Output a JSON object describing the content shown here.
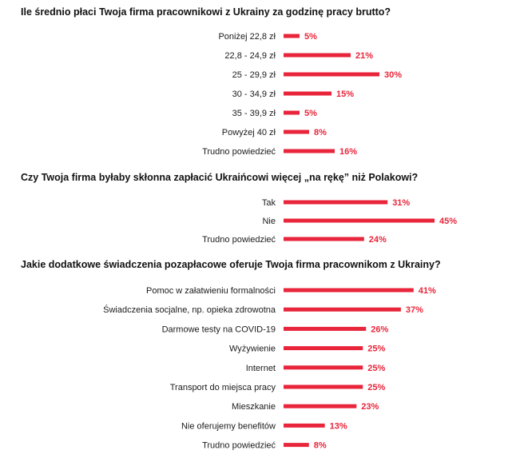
{
  "colors": {
    "bar": "#e8253a",
    "value_text": "#e8253a",
    "text": "#1a1a1a"
  },
  "chart_data": [
    {
      "type": "bar",
      "orientation": "horizontal",
      "title": "Ile średnio płaci Twoja firma pracownikowi z Ukrainy za godzinę pracy brutto?",
      "categories": [
        "Poniżej 22,8 zł",
        "22,8 - 24,9 zł",
        "25 - 29,9 zł",
        "30 - 34,9 zł",
        "35 - 39,9 zł",
        "Powyżej 40 zł",
        "Trudno powiedzieć"
      ],
      "values": [
        5,
        21,
        30,
        15,
        5,
        8,
        16
      ],
      "value_labels": [
        "5%",
        "21%",
        "30%",
        "15%",
        "5%",
        "8%",
        "16%"
      ]
    },
    {
      "type": "bar",
      "orientation": "horizontal",
      "title": "Czy Twoja firma byłaby skłonna zapłacić Ukraińcowi więcej „na rękę” niż Polakowi?",
      "categories": [
        "Tak",
        "Nie",
        "Trudno powiedzieć"
      ],
      "values": [
        31,
        45,
        24
      ],
      "value_labels": [
        "31%",
        "45%",
        "24%"
      ]
    },
    {
      "type": "bar",
      "orientation": "horizontal",
      "title": "Jakie dodatkowe świadczenia pozapłacowe oferuje Twoja firma pracownikom z Ukrainy?",
      "categories": [
        "Pomoc w załatwieniu formalności",
        "Świadczenia socjalne, np. opieka zdrowotna",
        "Darmowe testy na COVID-19",
        "Wyżywienie",
        "Internet",
        "Transport do miejsca pracy",
        "Mieszkanie",
        "Nie oferujemy benefitów",
        "Trudno powiedzieć"
      ],
      "values": [
        41,
        37,
        26,
        25,
        25,
        25,
        23,
        13,
        8
      ],
      "value_labels": [
        "41%",
        "37%",
        "26%",
        "25%",
        "25%",
        "25%",
        "23%",
        "13%",
        "8%"
      ]
    }
  ]
}
